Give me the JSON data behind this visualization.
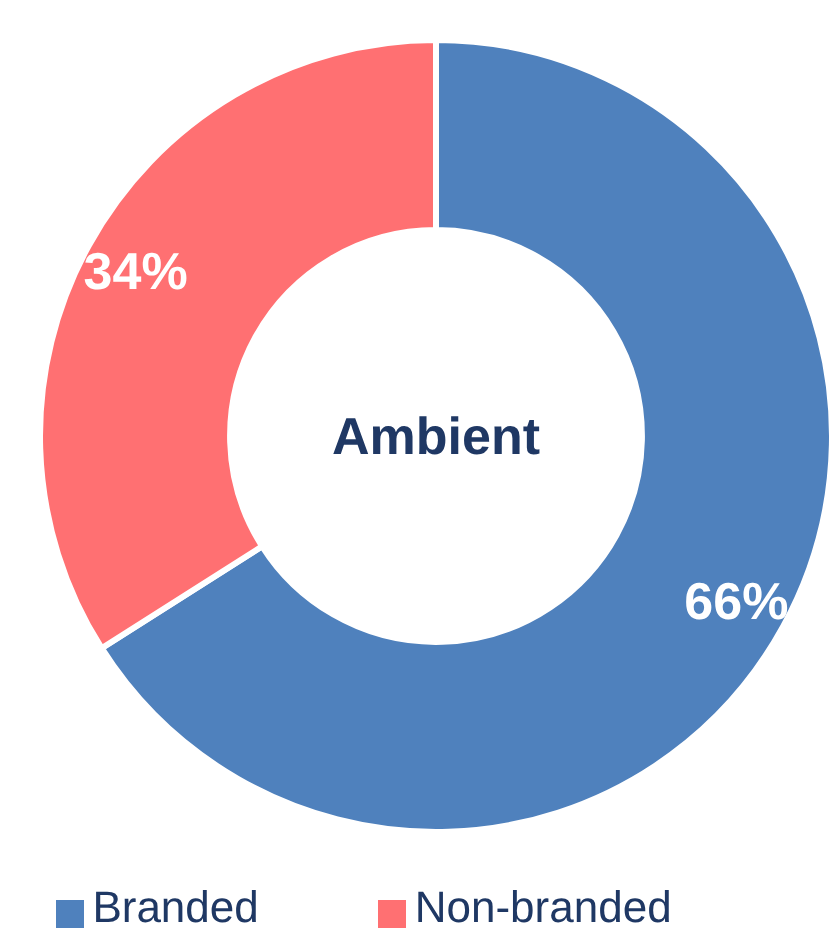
{
  "chart_data": {
    "type": "donut",
    "title": "Ambient",
    "categories": [
      "Branded",
      "Non-branded"
    ],
    "values": [
      66,
      34
    ],
    "colors": [
      "#4f81bd",
      "#ff7072"
    ],
    "value_labels": [
      "66%",
      "34%"
    ],
    "legend": "bottom"
  }
}
